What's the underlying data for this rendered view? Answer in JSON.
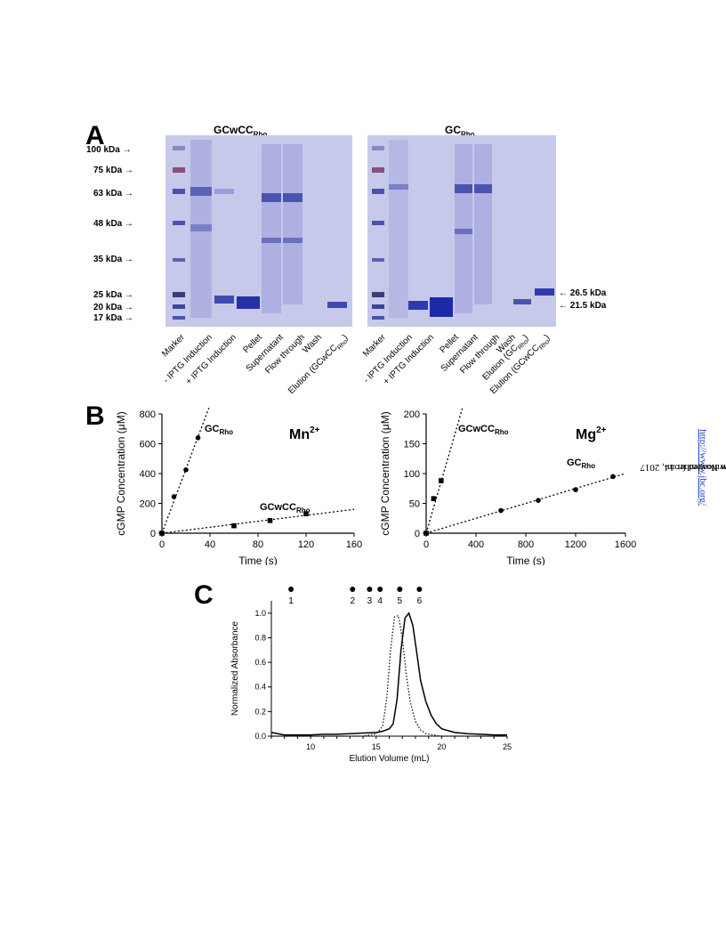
{
  "side_note": {
    "prefix": "Downloaded from ",
    "link": "http://www.jbc.org/",
    "suffix": " by guest on November 14, 2017"
  },
  "panel_a": {
    "label": "A",
    "gels": [
      {
        "title_main": "GCwCC",
        "title_sub": "Rho",
        "lanes": [
          "Marker",
          "- IPTG Induction",
          "+ IPTG Induction",
          "Pellet",
          "Supernatant",
          "Flow through",
          "Wash",
          "Elution (GCwCC"
        ],
        "last_lane_sub": "Rho",
        "last_lane_close": ")"
      },
      {
        "title_main": "GC",
        "title_sub": "Rho",
        "lanes": [
          "Marker",
          "- IPTG Induction",
          "+ IPTG Induction",
          "Pellet",
          "Supernatant",
          "Flow through",
          "Wash",
          "Elution (GC",
          "Elution (GCwCC"
        ],
        "lane_subs": [
          "Rho",
          "Rho"
        ]
      }
    ],
    "mw_markers": [
      "100 kDa",
      "75 kDa",
      "63 kDa",
      "48 kDa",
      "35 kDa",
      "25 kDa",
      "20 kDa",
      "17 kDa"
    ],
    "right_markers": [
      "26.5 kDa",
      "21.5 kDa"
    ]
  },
  "chart_data": [
    {
      "type": "scatter",
      "panel": "B",
      "ylabel": "cGMP Concentration (μM)",
      "xlabel": "Time (s)",
      "xlim": [
        0,
        160
      ],
      "ylim": [
        0,
        800
      ],
      "xticks": [
        0,
        40,
        80,
        120,
        160
      ],
      "yticks": [
        0,
        200,
        400,
        600,
        800
      ],
      "annotation": "Mn",
      "annotation_sup": "2+",
      "series": [
        {
          "name": "GC",
          "name_sub": "Rho",
          "marker": "circle",
          "x": [
            0,
            10,
            20,
            30
          ],
          "y": [
            0,
            245,
            425,
            640
          ],
          "fit_slope": 21.5
        },
        {
          "name": "GCwCC",
          "name_sub": "Rho",
          "marker": "square",
          "x": [
            0,
            60,
            90,
            120
          ],
          "y": [
            0,
            50,
            85,
            130
          ],
          "fit_slope": 1.0
        }
      ]
    },
    {
      "type": "scatter",
      "ylabel": "cGMP Concentration (μM)",
      "xlabel": "Time (s)",
      "xlim": [
        0,
        1600
      ],
      "ylim": [
        0,
        200
      ],
      "xticks": [
        0,
        400,
        800,
        1200,
        1600
      ],
      "yticks": [
        0,
        50,
        100,
        150,
        200
      ],
      "annotation": "Mg",
      "annotation_sup": "2+",
      "series": [
        {
          "name": "GCwCC",
          "name_sub": "Rho",
          "marker": "square",
          "x": [
            0,
            60,
            120
          ],
          "y": [
            0,
            58,
            88
          ],
          "fit_slope": 0.72
        },
        {
          "name": "GC",
          "name_sub": "Rho",
          "marker": "circle",
          "x": [
            0,
            600,
            900,
            1200,
            1500
          ],
          "y": [
            0,
            38,
            55,
            73,
            95
          ],
          "fit_slope": 0.0625
        }
      ]
    },
    {
      "type": "line",
      "panel": "C",
      "ylabel": "Normalized Absorbance",
      "xlabel": "Elution Volume (mL)",
      "xlim": [
        7,
        25
      ],
      "ylim": [
        0,
        1.1
      ],
      "xticks": [
        10,
        15,
        20,
        25
      ],
      "yticks": [
        0.0,
        0.2,
        0.4,
        0.6,
        0.8,
        1.0
      ],
      "standards": [
        {
          "label": "1",
          "x": 8.5
        },
        {
          "label": "2",
          "x": 13.2
        },
        {
          "label": "3",
          "x": 14.5
        },
        {
          "label": "4",
          "x": 15.3
        },
        {
          "label": "5",
          "x": 16.8
        },
        {
          "label": "6",
          "x": 18.3
        }
      ],
      "series": [
        {
          "style": "solid",
          "x": [
            7,
            7.5,
            8,
            9,
            10,
            11,
            12,
            13,
            14,
            15,
            15.5,
            16,
            16.3,
            16.6,
            16.9,
            17.2,
            17.5,
            17.8,
            18.1,
            18.4,
            18.8,
            19.2,
            19.6,
            20,
            21,
            22,
            23,
            24,
            25
          ],
          "y": [
            0.03,
            0.02,
            0.01,
            0.01,
            0.01,
            0.015,
            0.015,
            0.02,
            0.025,
            0.03,
            0.04,
            0.06,
            0.1,
            0.3,
            0.7,
            0.96,
            1.0,
            0.9,
            0.68,
            0.45,
            0.28,
            0.17,
            0.1,
            0.06,
            0.03,
            0.02,
            0.015,
            0.01,
            0.01
          ]
        },
        {
          "style": "dotted",
          "x": [
            7,
            8,
            9,
            10,
            11,
            12,
            13,
            14,
            15,
            15.5,
            15.8,
            16.1,
            16.4,
            16.7,
            17,
            17.3,
            17.6,
            18,
            18.4,
            18.8,
            19.3,
            20,
            21,
            22,
            23,
            24,
            25
          ],
          "y": [
            0.0,
            0.0,
            0.0,
            0.0,
            0.0,
            0.0,
            0.0,
            0.0,
            0.02,
            0.08,
            0.3,
            0.7,
            0.97,
            0.98,
            0.8,
            0.5,
            0.28,
            0.12,
            0.05,
            0.02,
            0.01,
            0.0,
            0.0,
            0.0,
            0.0,
            0.0,
            0.0
          ]
        }
      ]
    }
  ]
}
